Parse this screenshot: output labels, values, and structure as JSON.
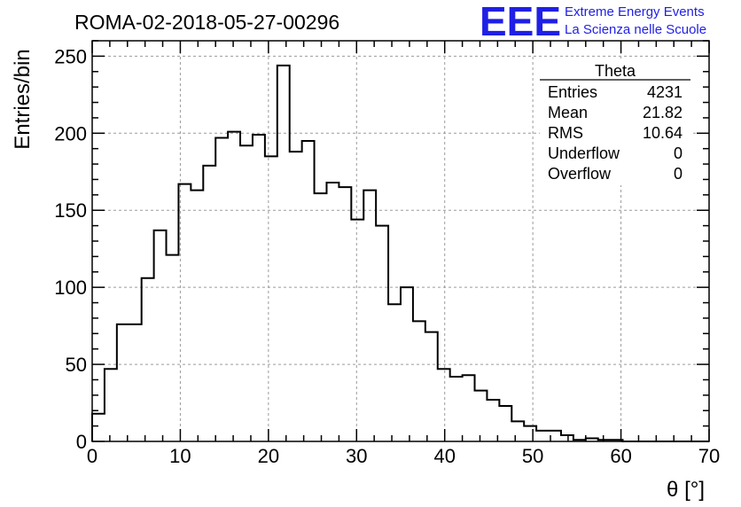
{
  "header": {
    "title": "ROMA-02-2018-05-27-00296",
    "logo_text": "EEE",
    "logo_line1": "Extreme Energy Events",
    "logo_line2": "La Scienza nelle Scuole"
  },
  "colors": {
    "logo": "#1f1fe6",
    "line": "#000000",
    "grid": "#9a9a9a"
  },
  "stats": {
    "title": "Theta",
    "rows": [
      {
        "label": "Entries",
        "value": "4231"
      },
      {
        "label": "Mean",
        "value": "21.82"
      },
      {
        "label": "RMS",
        "value": "10.64"
      },
      {
        "label": "Underflow",
        "value": "0"
      },
      {
        "label": "Overflow",
        "value": "0"
      }
    ]
  },
  "chart_data": {
    "type": "histogram",
    "title": "ROMA-02-2018-05-27-00296",
    "xlabel": "θ [°]",
    "ylabel": "Entries/bin",
    "xlim": [
      0,
      70
    ],
    "ylim": [
      0,
      260
    ],
    "bin_width": 1.4,
    "xticks": [
      0,
      10,
      20,
      30,
      40,
      50,
      60,
      70
    ],
    "yticks": [
      0,
      50,
      100,
      150,
      200,
      250
    ],
    "grid": true,
    "values": [
      18,
      47,
      76,
      76,
      106,
      137,
      121,
      167,
      163,
      179,
      197,
      201,
      192,
      199,
      185,
      244,
      188,
      195,
      161,
      168,
      165,
      144,
      163,
      140,
      89,
      100,
      78,
      71,
      47,
      42,
      43,
      33,
      27,
      23,
      13,
      10,
      7,
      7,
      4,
      1,
      2,
      1,
      1,
      0,
      0,
      0,
      0,
      0,
      0,
      0
    ]
  }
}
